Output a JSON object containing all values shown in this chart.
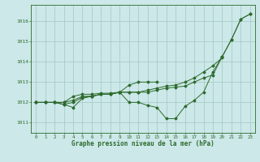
{
  "title": "Graphe pression niveau de la mer (hPa)",
  "bg_color": "#cce8e8",
  "grid_color": "#aacccc",
  "line_color": "#2d6a2d",
  "xlim": [
    -0.5,
    23.5
  ],
  "ylim": [
    1010.5,
    1016.8
  ],
  "yticks": [
    1011,
    1012,
    1013,
    1014,
    1015,
    1016
  ],
  "xticks": [
    0,
    1,
    2,
    3,
    4,
    5,
    6,
    7,
    8,
    9,
    10,
    11,
    12,
    13,
    14,
    15,
    16,
    17,
    18,
    19,
    20,
    21,
    22,
    23
  ],
  "series": [
    [
      1012.0,
      1012.0,
      1012.0,
      1011.9,
      1011.75,
      1012.2,
      1012.3,
      1012.4,
      1012.4,
      1012.5,
      1012.0,
      1012.0,
      1011.85,
      1011.75,
      1011.2,
      1011.2,
      1011.8,
      1012.1,
      1012.5,
      1013.5,
      1014.25,
      1015.1,
      1016.1,
      1016.35
    ],
    [
      1012.0,
      1012.0,
      1012.0,
      1011.9,
      1012.0,
      1012.25,
      1012.3,
      1012.4,
      1012.4,
      1012.5,
      1012.85,
      1013.0,
      1013.0,
      1013.0,
      null,
      null,
      null,
      null,
      null,
      null,
      null,
      null,
      null,
      null
    ],
    [
      1012.0,
      1012.0,
      1012.0,
      1012.0,
      1012.3,
      1012.4,
      1012.4,
      1012.45,
      1012.45,
      1012.5,
      1012.5,
      1012.5,
      1012.6,
      1012.7,
      1012.8,
      1012.85,
      1013.0,
      1013.2,
      1013.5,
      1013.8,
      1014.2,
      null,
      null,
      null
    ],
    [
      1012.0,
      1012.0,
      1012.0,
      1012.0,
      1012.1,
      1012.3,
      1012.3,
      1012.4,
      1012.4,
      1012.5,
      1012.5,
      1012.5,
      1012.5,
      1012.6,
      1012.7,
      1012.75,
      1012.8,
      1013.0,
      1013.2,
      1013.35,
      1014.25,
      1015.1,
      1016.1,
      1016.35
    ]
  ]
}
